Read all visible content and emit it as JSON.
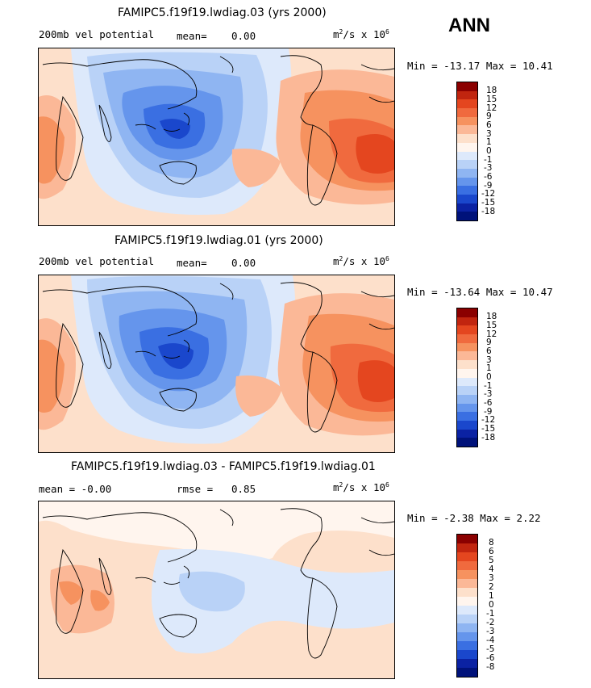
{
  "season": "ANN",
  "panels": [
    {
      "title": "FAMIPC5.f19f19.lwdiag.03 (yrs 2000)",
      "left": "200mb vel potential",
      "mid_label": "mean=",
      "mid_value": "0.00",
      "units_base": "m",
      "units_rest": "/s x 10",
      "units_sup1": "2",
      "units_sup2": "6",
      "minmax": "Min = -13.17 Max =  10.41",
      "colorbar": {
        "ticks": [
          "18",
          "15",
          "12",
          "9",
          "6",
          "3",
          "1",
          "0",
          "-1",
          "-3",
          "-6",
          "-9",
          "-12",
          "-15",
          "-18"
        ],
        "colors": [
          "#8b0000",
          "#c1250f",
          "#e4461f",
          "#f06a3e",
          "#f6925f",
          "#fbb897",
          "#fde0cb",
          "#fff5ee",
          "#dde9fb",
          "#b9d2f7",
          "#8fb5f2",
          "#6595ec",
          "#3a6fe2",
          "#1a47cc",
          "#0b22a3",
          "#00127a"
        ]
      }
    },
    {
      "title": "FAMIPC5.f19f19.lwdiag.01 (yrs 2000)",
      "left": "200mb vel potential",
      "mid_label": "mean=",
      "mid_value": "0.00",
      "units_base": "m",
      "units_rest": "/s x 10",
      "units_sup1": "2",
      "units_sup2": "6",
      "minmax": "Min = -13.64 Max =  10.47",
      "colorbar": {
        "ticks": [
          "18",
          "15",
          "12",
          "9",
          "6",
          "3",
          "1",
          "0",
          "-1",
          "-3",
          "-6",
          "-9",
          "-12",
          "-15",
          "-18"
        ],
        "colors": [
          "#8b0000",
          "#c1250f",
          "#e4461f",
          "#f06a3e",
          "#f6925f",
          "#fbb897",
          "#fde0cb",
          "#fff5ee",
          "#dde9fb",
          "#b9d2f7",
          "#8fb5f2",
          "#6595ec",
          "#3a6fe2",
          "#1a47cc",
          "#0b22a3",
          "#00127a"
        ]
      }
    },
    {
      "title": "FAMIPC5.f19f19.lwdiag.03 - FAMIPC5.f19f19.lwdiag.01",
      "left": "mean =   -0.00",
      "mid_label": "rmse =",
      "mid_value": "0.85",
      "units_base": "m",
      "units_rest": "/s x 10",
      "units_sup1": "2",
      "units_sup2": "6",
      "minmax": "Min =  -2.38 Max =   2.22",
      "colorbar": {
        "ticks": [
          "8",
          "6",
          "5",
          "4",
          "3",
          "2",
          "1",
          "0",
          "-1",
          "-2",
          "-3",
          "-4",
          "-5",
          "-6",
          "-8"
        ],
        "colors": [
          "#8b0000",
          "#c1250f",
          "#e4461f",
          "#f06a3e",
          "#f6925f",
          "#fbb897",
          "#fde0cb",
          "#fff5ee",
          "#dde9fb",
          "#b9d2f7",
          "#8fb5f2",
          "#6595ec",
          "#3a6fe2",
          "#1a47cc",
          "#0b22a3",
          "#00127a"
        ]
      }
    }
  ]
}
